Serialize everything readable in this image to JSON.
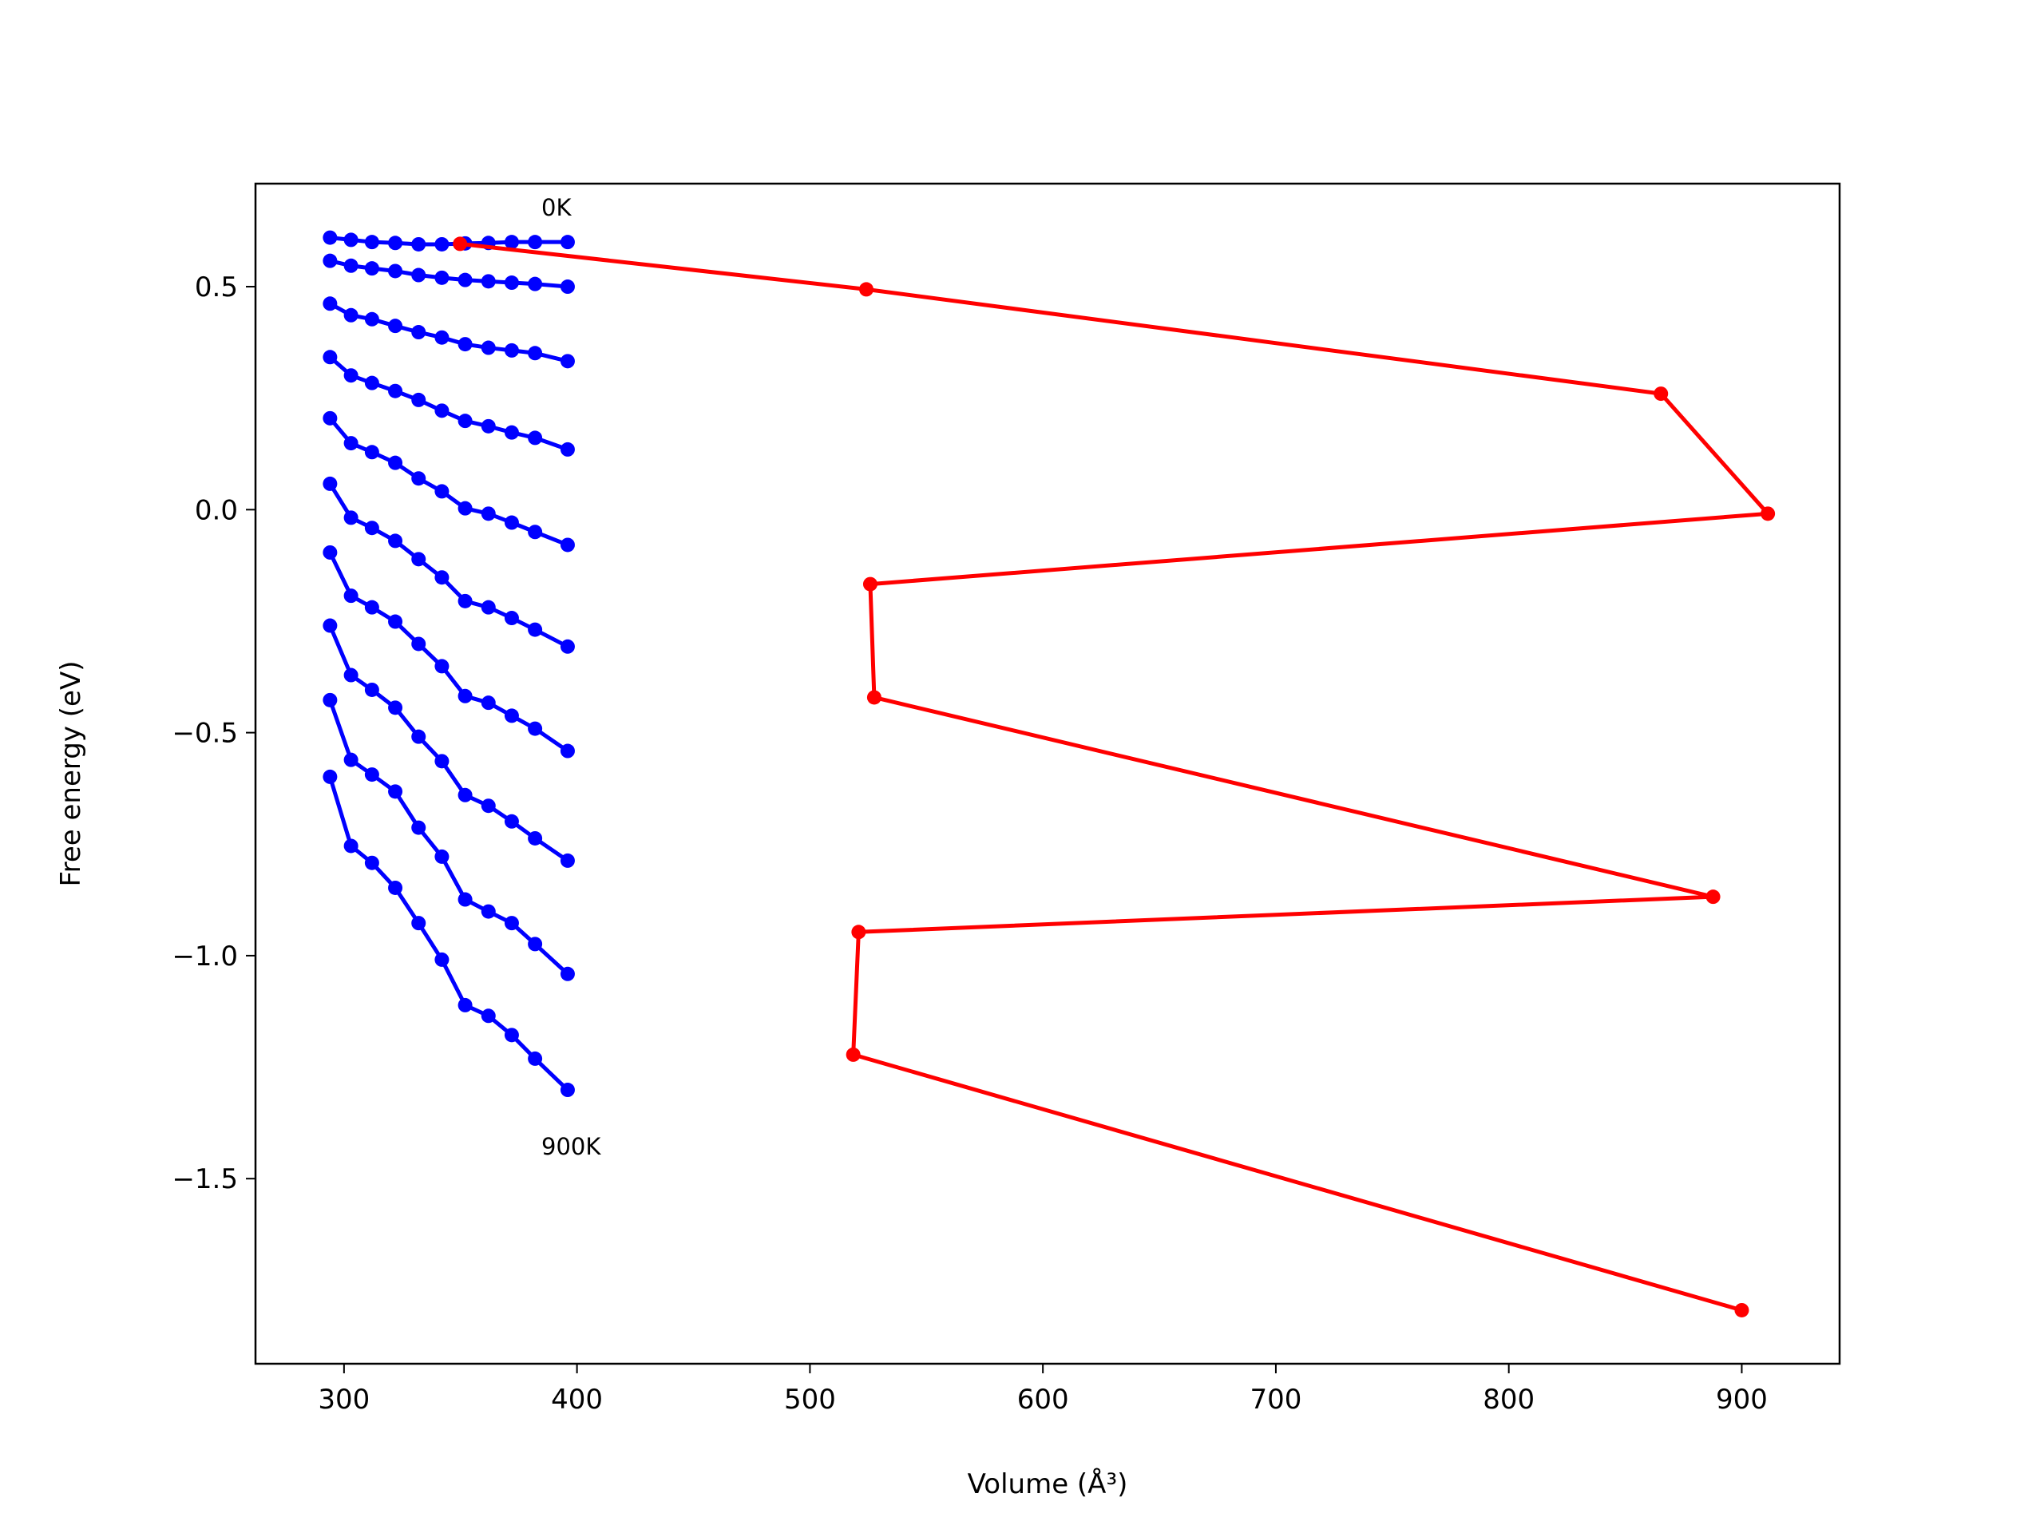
{
  "chart_data": {
    "type": "line",
    "xlabel": "Volume (Å³)",
    "ylabel": "Free energy (eV)",
    "xlim": [
      262,
      942
    ],
    "ylim": [
      -1.915,
      0.731
    ],
    "xticks": [
      300,
      400,
      500,
      600,
      700,
      800,
      900
    ],
    "yticks": [
      {
        "value": -1.5,
        "label": "−1.5"
      },
      {
        "value": -1.0,
        "label": "−1.0"
      },
      {
        "value": -0.5,
        "label": "−0.5"
      },
      {
        "value": 0,
        "label": "0.0"
      },
      0.5
    ],
    "annotations": [
      "0K",
      "900K"
    ],
    "series": [
      {
        "color": "#0000ff",
        "x": [
          294,
          303,
          312,
          322,
          332,
          342,
          352,
          362,
          372,
          382,
          396
        ],
        "values": [
          0.61,
          0.605,
          0.6,
          0.598,
          0.595,
          0.595,
          0.597,
          0.598,
          0.6,
          0.6,
          0.6
        ]
      },
      {
        "color": "#0000ff",
        "x": [
          294,
          303,
          312,
          322,
          332,
          342,
          352,
          362,
          372,
          382,
          396
        ],
        "values": [
          0.558,
          0.547,
          0.541,
          0.535,
          0.526,
          0.52,
          0.515,
          0.512,
          0.509,
          0.506,
          0.5
        ]
      },
      {
        "color": "#0000ff",
        "x": [
          294,
          303,
          312,
          322,
          332,
          342,
          352,
          362,
          372,
          382,
          396
        ],
        "values": [
          0.462,
          0.436,
          0.427,
          0.412,
          0.398,
          0.386,
          0.371,
          0.363,
          0.357,
          0.351,
          0.333
        ]
      },
      {
        "color": "#0000ff",
        "x": [
          294,
          303,
          312,
          322,
          332,
          342,
          352,
          362,
          372,
          382,
          396
        ],
        "values": [
          0.342,
          0.301,
          0.284,
          0.266,
          0.246,
          0.222,
          0.199,
          0.187,
          0.173,
          0.161,
          0.135
        ]
      },
      {
        "color": "#0000ff",
        "x": [
          294,
          303,
          312,
          322,
          332,
          342,
          352,
          362,
          372,
          382,
          396
        ],
        "values": [
          0.205,
          0.149,
          0.129,
          0.105,
          0.07,
          0.041,
          0.003,
          -0.009,
          -0.029,
          -0.05,
          -0.079
        ]
      },
      {
        "color": "#0000ff",
        "x": [
          294,
          303,
          312,
          322,
          332,
          342,
          352,
          362,
          372,
          382,
          396
        ],
        "values": [
          0.058,
          -0.018,
          -0.041,
          -0.07,
          -0.111,
          -0.152,
          -0.205,
          -0.219,
          -0.243,
          -0.269,
          -0.307
        ]
      },
      {
        "color": "#0000ff",
        "x": [
          294,
          303,
          312,
          322,
          332,
          342,
          352,
          362,
          372,
          382,
          396
        ],
        "values": [
          -0.096,
          -0.193,
          -0.219,
          -0.251,
          -0.301,
          -0.351,
          -0.418,
          -0.433,
          -0.462,
          -0.491,
          -0.541
        ]
      },
      {
        "color": "#0000ff",
        "x": [
          294,
          303,
          312,
          322,
          332,
          342,
          352,
          362,
          372,
          382,
          396
        ],
        "values": [
          -0.26,
          -0.371,
          -0.404,
          -0.444,
          -0.509,
          -0.564,
          -0.64,
          -0.664,
          -0.699,
          -0.737,
          -0.787
        ]
      },
      {
        "color": "#0000ff",
        "x": [
          294,
          303,
          312,
          322,
          332,
          342,
          352,
          362,
          372,
          382,
          396
        ],
        "values": [
          -0.427,
          -0.561,
          -0.594,
          -0.632,
          -0.713,
          -0.778,
          -0.874,
          -0.901,
          -0.927,
          -0.974,
          -1.041
        ]
      },
      {
        "color": "#0000ff",
        "x": [
          294,
          303,
          312,
          322,
          332,
          342,
          352,
          362,
          372,
          382,
          396
        ],
        "values": [
          -0.599,
          -0.754,
          -0.792,
          -0.848,
          -0.927,
          -1.009,
          -1.111,
          -1.135,
          -1.178,
          -1.231,
          -1.301
        ]
      },
      {
        "color": "#ff0000",
        "x": [
          349.8,
          524.2,
          865.3,
          911.2,
          525.9,
          527.6,
          887.7,
          520.9,
          518.6,
          900
        ],
        "values": [
          0.596,
          0.494,
          0.26,
          -0.009,
          -0.167,
          -0.421,
          -0.868,
          -0.947,
          -1.222,
          -1.795
        ]
      }
    ]
  }
}
